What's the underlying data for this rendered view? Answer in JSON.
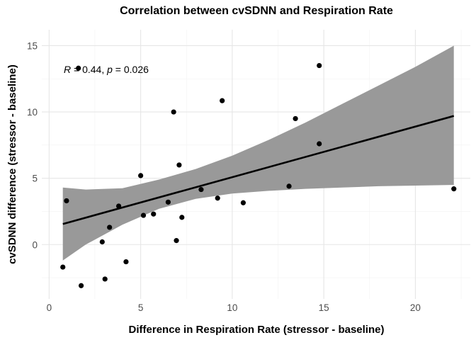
{
  "chart_data": {
    "type": "scatter",
    "title": "Correlation between cvSDNN and Respiration Rate",
    "xlabel": "Difference in Respiration Rate (stressor - baseline)",
    "ylabel": "cvSDNN difference (stressor - baseline)",
    "xlim": [
      -0.4,
      23.0
    ],
    "ylim": [
      -4.1,
      16.2
    ],
    "x_ticks": [
      0,
      5,
      10,
      15,
      20
    ],
    "y_ticks": [
      0,
      5,
      10,
      15
    ],
    "grid": true,
    "annotation": {
      "r_symbol": "R",
      "r_text": " = 0.44, ",
      "p_symbol": "p",
      "p_text": " = 0.026"
    },
    "points": [
      {
        "x": 0.75,
        "y": -1.7
      },
      {
        "x": 0.95,
        "y": 3.3
      },
      {
        "x": 1.6,
        "y": 13.3
      },
      {
        "x": 1.75,
        "y": -3.1
      },
      {
        "x": 2.9,
        "y": 0.2
      },
      {
        "x": 3.05,
        "y": -2.6
      },
      {
        "x": 3.3,
        "y": 1.3
      },
      {
        "x": 3.8,
        "y": 2.9
      },
      {
        "x": 4.2,
        "y": -1.3
      },
      {
        "x": 5.0,
        "y": 5.2
      },
      {
        "x": 5.15,
        "y": 2.2
      },
      {
        "x": 5.7,
        "y": 2.3
      },
      {
        "x": 6.5,
        "y": 3.2
      },
      {
        "x": 6.8,
        "y": 10.0
      },
      {
        "x": 6.95,
        "y": 0.3
      },
      {
        "x": 7.1,
        "y": 6.0
      },
      {
        "x": 7.25,
        "y": 2.05
      },
      {
        "x": 8.3,
        "y": 4.15
      },
      {
        "x": 9.2,
        "y": 3.5
      },
      {
        "x": 9.45,
        "y": 10.85
      },
      {
        "x": 10.6,
        "y": 3.15
      },
      {
        "x": 13.1,
        "y": 4.4
      },
      {
        "x": 13.45,
        "y": 9.5
      },
      {
        "x": 14.75,
        "y": 13.5
      },
      {
        "x": 14.75,
        "y": 7.6
      },
      {
        "x": 22.1,
        "y": 4.2
      }
    ],
    "fit_line": {
      "x": [
        0.75,
        22.1
      ],
      "y": [
        1.55,
        9.7
      ]
    },
    "confidence_band": {
      "x": [
        0.75,
        2,
        4,
        6,
        8,
        10,
        12,
        14,
        16,
        18,
        20,
        22.1
      ],
      "upper": [
        4.3,
        4.15,
        4.25,
        4.9,
        5.7,
        6.7,
        7.9,
        9.2,
        10.6,
        12.0,
        13.4,
        15.0
      ],
      "lower": [
        -1.2,
        0.0,
        1.5,
        2.7,
        3.45,
        3.85,
        4.05,
        4.2,
        4.3,
        4.4,
        4.45,
        4.5
      ]
    },
    "colors": {
      "points": "#000000",
      "fit_line": "#000000",
      "band": "#999999"
    }
  }
}
